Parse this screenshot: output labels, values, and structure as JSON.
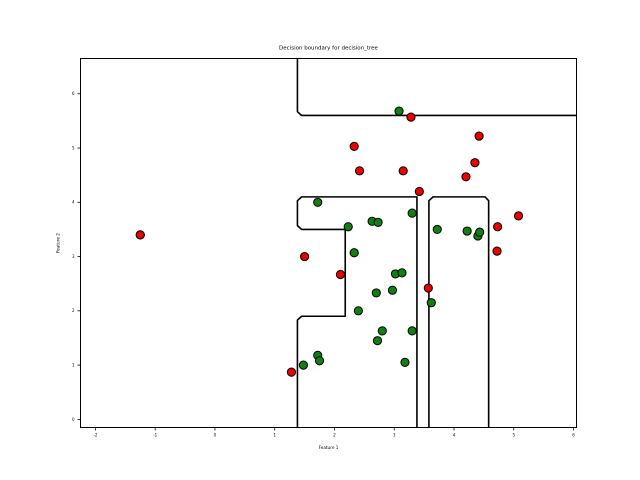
{
  "chart_data": {
    "type": "scatter",
    "title": "Decision boundary for decision_tree",
    "xlabel": "Feature 1",
    "ylabel": "Feature 2",
    "xlim": [
      -2.25,
      6.05
    ],
    "ylim": [
      -0.15,
      6.65
    ],
    "x_ticks": [
      "-2",
      "-1",
      "0",
      "1",
      "2",
      "3",
      "4",
      "5",
      "6"
    ],
    "y_ticks": [
      "0",
      "1",
      "2",
      "3",
      "4",
      "5",
      "6"
    ],
    "grid": false,
    "legend": "none",
    "colors": {
      "class_red": "#ee0000",
      "class_green": "#108010",
      "marker_edge": "#000000",
      "boundary": "#000000"
    },
    "series": [
      {
        "color": "#ee0000",
        "points": [
          [
            -1.25,
            3.4
          ],
          [
            -1.25,
            3.4
          ],
          [
            1.5,
            3.0
          ],
          [
            1.28,
            0.87
          ],
          [
            2.1,
            2.67
          ],
          [
            2.33,
            5.03
          ],
          [
            2.42,
            4.58
          ],
          [
            3.15,
            4.58
          ],
          [
            3.28,
            5.57
          ],
          [
            3.42,
            4.2
          ],
          [
            3.57,
            2.42
          ],
          [
            4.2,
            4.47
          ],
          [
            4.35,
            4.73
          ],
          [
            4.42,
            5.22
          ],
          [
            4.72,
            3.1
          ],
          [
            4.73,
            3.55
          ],
          [
            5.08,
            3.75
          ]
        ]
      },
      {
        "color": "#108010",
        "points": [
          [
            1.48,
            1.0
          ],
          [
            1.72,
            1.18
          ],
          [
            1.75,
            1.08
          ],
          [
            1.72,
            4.0
          ],
          [
            2.23,
            3.55
          ],
          [
            2.33,
            3.07
          ],
          [
            2.4,
            2.0
          ],
          [
            2.63,
            3.65
          ],
          [
            2.73,
            3.63
          ],
          [
            2.7,
            2.33
          ],
          [
            2.72,
            1.45
          ],
          [
            2.8,
            1.63
          ],
          [
            2.97,
            2.38
          ],
          [
            3.02,
            2.68
          ],
          [
            3.13,
            2.7
          ],
          [
            3.08,
            5.68
          ],
          [
            3.18,
            1.05
          ],
          [
            3.3,
            1.63
          ],
          [
            3.3,
            3.8
          ],
          [
            3.62,
            2.15
          ],
          [
            3.72,
            3.5
          ],
          [
            4.22,
            3.47
          ],
          [
            4.4,
            3.38
          ],
          [
            4.43,
            3.45
          ]
        ]
      }
    ],
    "boundaries": [
      [
        [
          1.38,
          6.65
        ],
        [
          1.38,
          5.67
        ],
        [
          1.45,
          5.6
        ],
        [
          6.05,
          5.6
        ]
      ],
      [
        [
          1.38,
          -0.15
        ],
        [
          1.38,
          1.83
        ],
        [
          1.45,
          1.9
        ],
        [
          2.18,
          1.9
        ],
        [
          2.18,
          3.5
        ],
        [
          1.45,
          3.5
        ],
        [
          1.38,
          3.57
        ],
        [
          1.38,
          4.03
        ],
        [
          1.45,
          4.1
        ],
        [
          3.38,
          4.1
        ],
        [
          3.38,
          -0.15
        ]
      ],
      [
        [
          3.58,
          -0.15
        ],
        [
          3.58,
          4.03
        ],
        [
          3.65,
          4.1
        ],
        [
          4.52,
          4.1
        ],
        [
          4.58,
          4.03
        ],
        [
          4.58,
          -0.15
        ]
      ]
    ]
  }
}
